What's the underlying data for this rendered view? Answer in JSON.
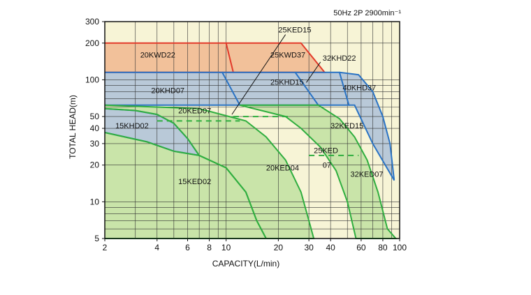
{
  "chart_data": {
    "type": "area",
    "title": "50Hz 2P 2900min⁻¹",
    "xlabel": "CAPACITY(L/min)",
    "ylabel": "TOTAL HEAD(m)",
    "x_scale": "log",
    "y_scale": "log",
    "xlim": [
      2,
      100
    ],
    "ylim": [
      5,
      300
    ],
    "x_ticks": [
      2,
      4,
      6,
      8,
      10,
      20,
      30,
      40,
      60,
      80,
      100
    ],
    "x_tick_labels": [
      "2",
      "4",
      "6",
      "8",
      "10",
      "20",
      "30",
      "40",
      "60",
      "80",
      "100"
    ],
    "y_ticks": [
      5,
      10,
      20,
      30,
      40,
      50,
      100,
      200,
      300
    ],
    "y_tick_labels": [
      "5",
      "10",
      "20",
      "30",
      "40",
      "50",
      "100",
      "200",
      "300"
    ],
    "grid": true,
    "background_color": "#f7f4d6",
    "regions": [
      {
        "name": "20KWD22",
        "color": "#f2c19a",
        "line": "#e23a2a",
        "points": [
          [
            2,
            200
          ],
          [
            10,
            200
          ],
          [
            11,
            115
          ],
          [
            2,
            115
          ]
        ],
        "label_at": [
          3.2,
          152
        ]
      },
      {
        "name": "25KWD37",
        "color": "#f2c19a",
        "line": "#e23a2a",
        "points": [
          [
            10,
            200
          ],
          [
            27,
            200
          ],
          [
            37,
            115
          ],
          [
            11,
            115
          ]
        ],
        "label_at": [
          18,
          152
        ]
      },
      {
        "name": "20KHD07",
        "color": "#b9c9d8",
        "line": "#2a73c4",
        "points": [
          [
            2,
            115
          ],
          [
            9.5,
            115
          ],
          [
            12,
            62
          ],
          [
            2,
            62
          ]
        ],
        "label_at": [
          3.7,
          78
        ]
      },
      {
        "name": "25KHD15",
        "color": "#b9c9d8",
        "line": "#2a73c4",
        "points": [
          [
            9.5,
            115
          ],
          [
            25,
            115
          ],
          [
            34,
            62
          ],
          [
            12,
            62
          ]
        ],
        "label_at": [
          18,
          91
        ]
      },
      {
        "name": "32KHD22",
        "color": "#b9c9d8",
        "line": "#2a73c4",
        "points": [
          [
            25,
            115
          ],
          [
            45,
            115
          ],
          [
            51,
            62
          ],
          [
            34,
            62
          ]
        ],
        "label_at": [
          36,
          144
        ]
      },
      {
        "name": "40KHD37",
        "color": "#b9c9d8",
        "line": "#2a73c4",
        "points": [
          [
            45,
            115
          ],
          [
            58,
            110
          ],
          [
            70,
            80
          ],
          [
            80,
            50
          ],
          [
            88,
            30
          ],
          [
            93,
            15
          ],
          [
            70,
            30
          ],
          [
            55,
            62
          ],
          [
            51,
            62
          ]
        ],
        "label_at": [
          47,
          82
        ]
      },
      {
        "name": "15KHD02",
        "color": "#b9c9d8",
        "line": "#2a73c4",
        "points": [
          [
            2,
            58
          ],
          [
            3,
            56
          ],
          [
            4,
            52
          ],
          [
            5,
            44
          ],
          [
            6,
            33
          ],
          [
            7,
            24
          ],
          [
            5,
            26
          ],
          [
            3.5,
            31
          ],
          [
            2,
            37
          ]
        ],
        "label_at": [
          2.3,
          40
        ]
      },
      {
        "name": "15KED02",
        "color": "#c9e4a9",
        "line": "#2fae3f",
        "points": [
          [
            2,
            37
          ],
          [
            3.5,
            31
          ],
          [
            5,
            26
          ],
          [
            7,
            24
          ],
          [
            10,
            19
          ],
          [
            13,
            12
          ],
          [
            15,
            7
          ],
          [
            17,
            5
          ],
          [
            2,
            5
          ]
        ],
        "label_at": [
          5.3,
          14
        ]
      },
      {
        "name": "20KED04",
        "color": "#c9e4a9",
        "line": "#2fae3f",
        "points": [
          [
            2,
            62
          ],
          [
            7,
            58
          ],
          [
            13,
            46
          ],
          [
            17,
            34
          ],
          [
            22,
            22
          ],
          [
            27,
            12
          ],
          [
            30,
            7
          ],
          [
            32,
            5
          ],
          [
            17,
            5
          ],
          [
            15,
            7
          ],
          [
            13,
            12
          ],
          [
            10,
            19
          ],
          [
            7,
            24
          ],
          [
            6,
            33
          ],
          [
            5,
            44
          ],
          [
            4,
            52
          ],
          [
            3,
            56
          ],
          [
            2,
            58
          ]
        ],
        "label_at": [
          17,
          18
        ]
      },
      {
        "name": "20KED07",
        "color": "#c9e4a9",
        "line": "#2fae3f",
        "dash_at": 46,
        "points": [
          [
            4,
            46
          ],
          [
            12,
            46
          ]
        ],
        "label_at": [
          5.3,
          53
        ]
      },
      {
        "name": "25KED15",
        "color": "#c9e4a9",
        "line": "#2fae3f",
        "dash_at": 50,
        "points": [
          [
            11,
            50
          ],
          [
            23,
            50
          ]
        ],
        "label_at": [
          20,
          245
        ]
      },
      {
        "name": "32KED15",
        "color": "#c9e4a9",
        "line": "#2fae3f",
        "points": [
          [
            12,
            62
          ],
          [
            34,
            62
          ],
          [
            45,
            48
          ],
          [
            55,
            34
          ],
          [
            65,
            22
          ],
          [
            75,
            12
          ],
          [
            85,
            6
          ],
          [
            95,
            5
          ],
          [
            56,
            5
          ],
          [
            50,
            10
          ],
          [
            43,
            18
          ],
          [
            35,
            28
          ],
          [
            27,
            40
          ],
          [
            22,
            50
          ],
          [
            12,
            62
          ]
        ],
        "label_at": [
          40,
          40
        ]
      },
      {
        "name": "25KED07",
        "color": "#c9e4a9",
        "line": "#2fae3f",
        "dash_at": 24,
        "points": [
          [
            30,
            24
          ],
          [
            58,
            24
          ]
        ],
        "label_at": [
          32,
          22
        ]
      },
      {
        "name": "32KED07",
        "color": "#c9e4a9",
        "line": "#2fae3f",
        "label_at": [
          52,
          16
        ]
      }
    ],
    "annotations": [
      {
        "text": "25KED15",
        "at": [
          20,
          245
        ]
      },
      {
        "text": "32KHD22",
        "at": [
          36,
          144
        ]
      },
      {
        "text": "20KWD22",
        "at": [
          3.2,
          152
        ]
      },
      {
        "text": "25KWD37",
        "at": [
          18,
          152
        ]
      },
      {
        "text": "25KHD15",
        "at": [
          18,
          91
        ]
      },
      {
        "text": "20KHD07",
        "at": [
          3.7,
          78
        ]
      },
      {
        "text": "40KHD37",
        "at": [
          47,
          82
        ]
      },
      {
        "text": "20KED07",
        "at": [
          5.3,
          53
        ]
      },
      {
        "text": "15KHD02",
        "at": [
          2.3,
          40
        ]
      },
      {
        "text": "32KED15",
        "at": [
          40,
          40
        ]
      },
      {
        "text": "25KED",
        "at": [
          32,
          25
        ]
      },
      {
        "text": "07",
        "at": [
          36,
          19
        ]
      },
      {
        "text": "20KED04",
        "at": [
          17,
          18
        ]
      },
      {
        "text": "32KED07",
        "at": [
          52,
          16
        ]
      },
      {
        "text": "15KED02",
        "at": [
          5.3,
          14
        ]
      }
    ]
  }
}
